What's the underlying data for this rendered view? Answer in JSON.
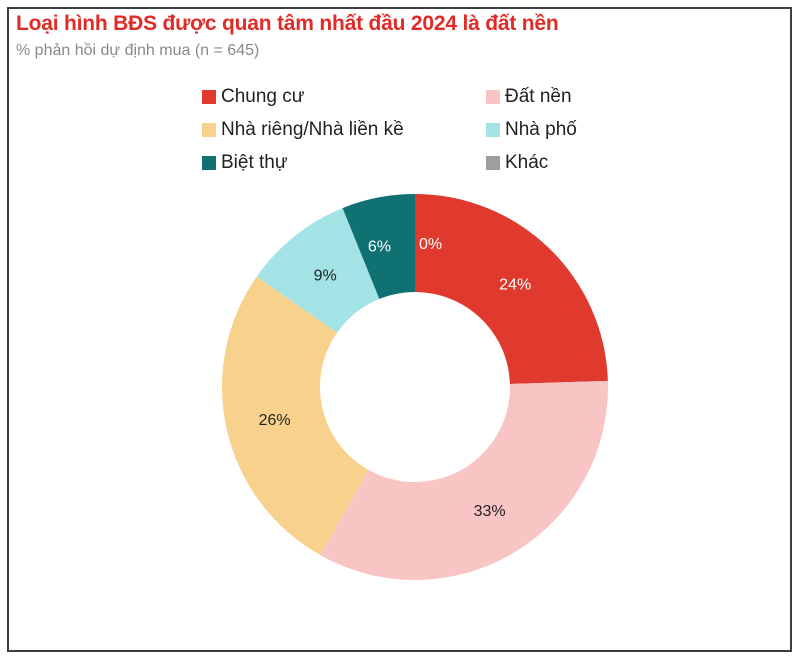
{
  "chart_data": {
    "type": "pie",
    "donut": true,
    "title": "Loại hình BĐS được quan tâm nhất đầu 2024 là đất nền",
    "subtitle": "% phản hồi dự định mua (n = 645)",
    "legend_position": "top",
    "categories": [
      "Chung cư",
      "Đất nền",
      "Nhà riêng/Nhà liền kề",
      "Nhà phố",
      "Biệt thự",
      "Khác"
    ],
    "values": [
      24,
      33,
      26,
      9,
      6,
      0
    ],
    "data_labels": [
      "24%",
      "33%",
      "26%",
      "9%",
      "6%",
      "0%"
    ],
    "colors": [
      "#e03a2f",
      "#f9c4c4",
      "#f8d28c",
      "#a3e3e6",
      "#0f7172",
      "#9e9e9e"
    ],
    "label_colors": [
      "#ffffff",
      "#222222",
      "#222222",
      "#222222",
      "#ffffff",
      "#ffffff"
    ]
  }
}
